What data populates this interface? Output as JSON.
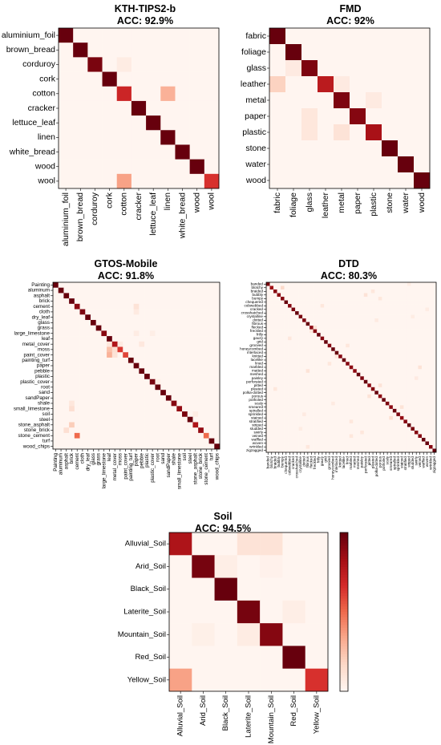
{
  "colormap": [
    "#fff5f0",
    "#fcd7c6",
    "#f9a88c",
    "#ef6a4c",
    "#d42a2a",
    "#a50f15",
    "#67000d"
  ],
  "chart_data": [
    {
      "type": "heatmap",
      "title": "KTH-TIPS2-b",
      "subtitle": "ACC: 92.9%",
      "labels": [
        "aluminium_foil",
        "brown_bread",
        "corduroy",
        "cork",
        "cotton",
        "cracker",
        "lettuce_leaf",
        "linen",
        "white_bread",
        "wood",
        "wool"
      ],
      "matrix": [
        [
          1,
          0,
          0,
          0,
          0,
          0,
          0,
          0,
          0,
          0,
          0
        ],
        [
          0,
          1,
          0,
          0,
          0,
          0,
          0,
          0,
          0,
          0,
          0
        ],
        [
          0,
          0,
          0.95,
          0,
          0.05,
          0,
          0,
          0,
          0,
          0,
          0
        ],
        [
          0,
          0,
          0,
          1,
          0,
          0,
          0,
          0,
          0,
          0,
          0
        ],
        [
          0,
          0,
          0,
          0,
          0.7,
          0,
          0,
          0.3,
          0,
          0,
          0
        ],
        [
          0,
          0,
          0,
          0,
          0,
          1,
          0,
          0,
          0,
          0,
          0
        ],
        [
          0,
          0,
          0,
          0,
          0,
          0,
          1,
          0,
          0,
          0,
          0
        ],
        [
          0,
          0,
          0,
          0,
          0,
          0,
          0,
          1,
          0,
          0,
          0
        ],
        [
          0,
          0,
          0,
          0,
          0,
          0,
          0,
          0,
          1,
          0,
          0
        ],
        [
          0,
          0,
          0,
          0,
          0,
          0,
          0,
          0,
          0,
          1,
          0
        ],
        [
          0,
          0,
          0,
          0,
          0.35,
          0,
          0,
          0,
          0,
          0,
          0.65
        ]
      ]
    },
    {
      "type": "heatmap",
      "title": "FMD",
      "subtitle": "ACC: 92%",
      "labels": [
        "fabric",
        "foliage",
        "glass",
        "leather",
        "metal",
        "paper",
        "plastic",
        "stone",
        "water",
        "wood"
      ],
      "matrix": [
        [
          1,
          0,
          0,
          0,
          0,
          0,
          0,
          0,
          0,
          0
        ],
        [
          0,
          1,
          0,
          0,
          0,
          0,
          0,
          0,
          0,
          0
        ],
        [
          0,
          0.06,
          0.94,
          0,
          0,
          0,
          0,
          0,
          0,
          0
        ],
        [
          0.18,
          0,
          0,
          0.76,
          0.06,
          0,
          0,
          0,
          0,
          0
        ],
        [
          0,
          0,
          0,
          0,
          0.94,
          0,
          0.06,
          0,
          0,
          0
        ],
        [
          0,
          0,
          0.08,
          0,
          0,
          0.92,
          0,
          0,
          0,
          0
        ],
        [
          0,
          0,
          0.08,
          0,
          0.1,
          0,
          0.82,
          0,
          0,
          0
        ],
        [
          0,
          0,
          0,
          0,
          0,
          0,
          0,
          1,
          0,
          0
        ],
        [
          0,
          0,
          0,
          0,
          0,
          0,
          0,
          0,
          1,
          0
        ],
        [
          0,
          0,
          0,
          0,
          0,
          0,
          0,
          0,
          0,
          1
        ]
      ]
    },
    {
      "type": "heatmap",
      "title": "GTOS-Mobile",
      "subtitle": "ACC: 91.8%",
      "labels": [
        "Painting",
        "aluminum",
        "asphalt",
        "brick",
        "cement",
        "cloth",
        "dry_leaf",
        "glass",
        "grass",
        "large_limestone",
        "leaf",
        "metal_cover",
        "moss",
        "paint_cover",
        "painting_turf",
        "paper",
        "pebble",
        "plastic",
        "plastic_cover",
        "root",
        "sand",
        "sandPaper",
        "shale",
        "small_limestone",
        "soil",
        "steel",
        "stone_asphalt",
        "stone_brick",
        "stone_cement",
        "turf",
        "wood_chips"
      ],
      "matrix_rule": "diagonal",
      "offdiag": [
        [
          4,
          15,
          0.1
        ],
        [
          5,
          15,
          0.06
        ],
        [
          9,
          15,
          0.05
        ],
        [
          11,
          10,
          0.08
        ],
        [
          11,
          12,
          0.06
        ],
        [
          11,
          16,
          0.07
        ],
        [
          12,
          10,
          0.25
        ],
        [
          12,
          11,
          0.12
        ],
        [
          13,
          10,
          0.3
        ],
        [
          13,
          11,
          0.1
        ],
        [
          18,
          19,
          0.04
        ],
        [
          22,
          3,
          0.08
        ],
        [
          23,
          3,
          0.12
        ],
        [
          26,
          3,
          0.2
        ],
        [
          27,
          2,
          0.12
        ],
        [
          28,
          4,
          0.5
        ],
        [
          24,
          26,
          0.05
        ],
        [
          9,
          18,
          0.04
        ]
      ]
    },
    {
      "type": "heatmap",
      "title": "DTD",
      "subtitle": "ACC: 80.3%",
      "labels": [
        "banded",
        "blotchy",
        "braided",
        "bubbly",
        "bumpy",
        "chequered",
        "cobwebbed",
        "cracked",
        "crosshatched",
        "crystalline",
        "dotted",
        "fibrous",
        "flecked",
        "freckled",
        "frilly",
        "gauzy",
        "grid",
        "grooved",
        "honeycombed",
        "interlaced",
        "knitted",
        "lacelike",
        "lined",
        "marbled",
        "matted",
        "meshed",
        "paisley",
        "perforated",
        "pitted",
        "pleated",
        "polka-dotted",
        "porous",
        "potholed",
        "scaly",
        "smeared",
        "spiralled",
        "sprinkled",
        "stained",
        "stratified",
        "striped",
        "studded",
        "swirly",
        "veined",
        "waffled",
        "woven",
        "wrinkled",
        "zigzagged"
      ],
      "matrix_rule": "diagonal",
      "offdiag": [
        [
          1,
          4,
          0.15
        ],
        [
          3,
          27,
          0.1
        ],
        [
          4,
          31,
          0.08
        ],
        [
          7,
          44,
          0.05
        ],
        [
          12,
          13,
          0.1
        ],
        [
          13,
          12,
          0.08
        ],
        [
          20,
          19,
          0.08
        ],
        [
          23,
          42,
          0.1
        ],
        [
          24,
          11,
          0.1
        ],
        [
          26,
          41,
          0.06
        ],
        [
          28,
          31,
          0.1
        ],
        [
          31,
          28,
          0.1
        ],
        [
          34,
          37,
          0.1
        ],
        [
          37,
          34,
          0.12
        ],
        [
          38,
          23,
          0.08
        ],
        [
          41,
          26,
          0.08
        ],
        [
          42,
          23,
          0.08
        ],
        [
          45,
          11,
          0.08
        ],
        [
          2,
          29,
          0.08
        ],
        [
          6,
          15,
          0.08
        ],
        [
          15,
          6,
          0.08
        ],
        [
          29,
          2,
          0.08
        ],
        [
          0,
          39,
          0.05
        ],
        [
          9,
          40,
          0.05
        ],
        [
          40,
          9,
          0.05
        ],
        [
          17,
          22,
          0.08
        ],
        [
          22,
          17,
          0.08
        ],
        [
          33,
          18,
          0.06
        ],
        [
          36,
          10,
          0.06
        ],
        [
          10,
          30,
          0.06
        ]
      ]
    },
    {
      "type": "heatmap",
      "title": "Soil",
      "subtitle": "ACC: 94.5%",
      "labels": [
        "Alluvial_Soil",
        "Arid_Soil",
        "Black_Soil",
        "Laterite_Soil",
        "Mountain_Soil",
        "Red_Soil",
        "Yellow_Soil"
      ],
      "matrix": [
        [
          0.8,
          0,
          0,
          0.1,
          0.1,
          0,
          0
        ],
        [
          0,
          0.96,
          0.04,
          0,
          0.02,
          0,
          0
        ],
        [
          0,
          0,
          1,
          0,
          0,
          0,
          0
        ],
        [
          0,
          0,
          0,
          0.96,
          0,
          0.04,
          0
        ],
        [
          0,
          0.03,
          0,
          0.05,
          0.92,
          0,
          0
        ],
        [
          0,
          0,
          0,
          0,
          0,
          1,
          0
        ],
        [
          0.35,
          0,
          0,
          0,
          0,
          0,
          0.65
        ]
      ],
      "colorbar": true
    }
  ]
}
